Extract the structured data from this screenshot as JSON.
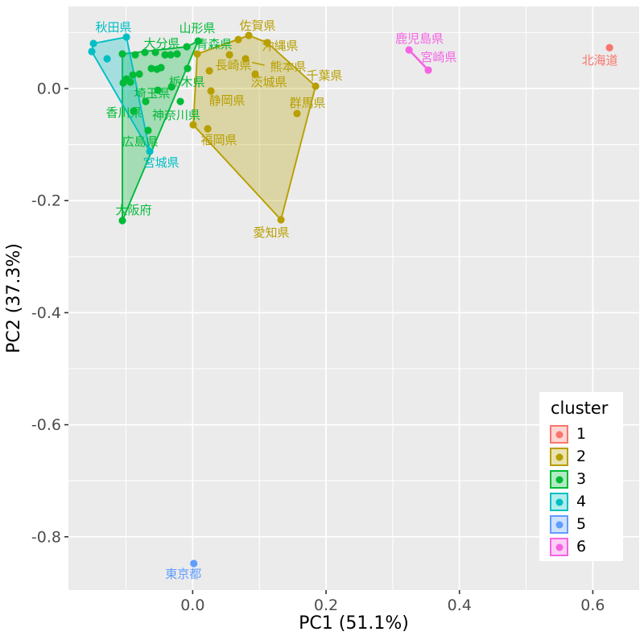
{
  "chart_data": {
    "type": "scatter",
    "title": "",
    "xlabel": "PC1 (51.1%)",
    "ylabel": "PC2 (37.3%)",
    "xlim": [
      -0.1863,
      0.6695
    ],
    "ylim": [
      -0.8951,
      0.1466
    ],
    "x_ticks": [
      0.0,
      0.2,
      0.4,
      0.6
    ],
    "x_tick_labels": [
      "0.0",
      "0.2",
      "0.4",
      "0.6"
    ],
    "y_ticks": [
      0.0,
      -0.2,
      -0.4,
      -0.6,
      -0.8
    ],
    "y_tick_labels": [
      "0.0",
      "-0.2",
      "-0.4",
      "-0.6",
      "-0.8"
    ],
    "grid": true,
    "panel_bg": "#EBEBEB",
    "grid_color": "#FFFFFF",
    "tick_color": "#333333",
    "tick_label_color": "#4D4D4D",
    "axis_title_color": "#000000",
    "legend": {
      "title": "cluster",
      "position": "right-inside",
      "entries": [
        {
          "label": "1",
          "color": "#F8766D"
        },
        {
          "label": "2",
          "color": "#B79F00"
        },
        {
          "label": "3",
          "color": "#00BA38"
        },
        {
          "label": "4",
          "color": "#00BFC4"
        },
        {
          "label": "5",
          "color": "#619CFF"
        },
        {
          "label": "6",
          "color": "#F564E3"
        }
      ]
    },
    "series": [
      {
        "name": "1",
        "color": "#F8766D",
        "hull_closed": false,
        "hull": [],
        "points": [
          {
            "x": 0.625,
            "y": 0.073,
            "label": "北海道",
            "dx": -12,
            "dy": 16
          }
        ]
      },
      {
        "name": "2",
        "color": "#B79F00",
        "hull_closed": true,
        "hull": [
          [
            0.0841,
            0.0948
          ],
          [
            0.1119,
            0.0819
          ],
          [
            0.1843,
            0.0043
          ],
          [
            0.1324,
            -0.2342
          ],
          [
            0.0008,
            -0.0647
          ],
          [
            0.0069,
            0.0618
          ]
        ],
        "points": [
          {
            "x": 0.0841,
            "y": 0.0948,
            "label": "佐賀県",
            "dx": 11,
            "dy": -12
          },
          {
            "x": 0.1119,
            "y": 0.0819,
            "label": "沖縄県",
            "dx": 16,
            "dy": 4
          },
          {
            "x": 0.0793,
            "y": 0.0532,
            "label": "熊本県",
            "dx": 53,
            "dy": 10
          },
          {
            "x": 0.0938,
            "y": 0.0259,
            "label": "茨城県",
            "dx": 17,
            "dy": 10
          },
          {
            "x": 0.025,
            "y": 0.0316,
            "label": "長崎県",
            "dx": 30,
            "dy": -7
          },
          {
            "x": 0.1843,
            "y": 0.0043,
            "label": "千葉県",
            "dx": 11,
            "dy": -13
          },
          {
            "x": 0.0274,
            "y": -0.0043,
            "label": "静岡県",
            "dx": 20,
            "dy": 12
          },
          {
            "x": 0.1565,
            "y": -0.0445,
            "label": "群馬県",
            "dx": 13,
            "dy": -13
          },
          {
            "x": 0.0226,
            "y": -0.0718,
            "label": "福岡県",
            "dx": 14,
            "dy": 14
          },
          {
            "x": 0.1324,
            "y": -0.2342,
            "label": "愛知県",
            "dx": -12,
            "dy": 16
          },
          {
            "x": 0.0684,
            "y": 0.0876
          },
          {
            "x": 0.0552,
            "y": 0.0603
          },
          {
            "x": 0.0069,
            "y": 0.0618
          },
          {
            "x": 0.0008,
            "y": -0.0647
          }
        ]
      },
      {
        "name": "3",
        "color": "#00BA38",
        "hull_closed": true,
        "hull": [
          [
            -0.1054,
            0.0618
          ],
          [
            -0.0088,
            0.0747
          ],
          [
            0.0081,
            0.0848
          ],
          [
            -0.1054,
            -0.2356
          ]
        ],
        "points": [
          {
            "x": -0.0088,
            "y": 0.0747,
            "label": "山形県",
            "dx": 13,
            "dy": -23
          },
          {
            "x": 0.0081,
            "y": 0.0848,
            "label": "青森県",
            "dx": 20,
            "dy": 4
          },
          {
            "x": -0.0559,
            "y": 0.0647,
            "label": "大分県",
            "dx": 8,
            "dy": -11
          },
          {
            "x": -0.0317,
            "y": 0.0029,
            "label": "栃木県",
            "dx": 19,
            "dy": -6
          },
          {
            "x": -0.0704,
            "y": -0.023,
            "label": "埼玉県",
            "dx": 8,
            "dy": -10
          },
          {
            "x": -0.0185,
            "y": -0.023,
            "label": "神奈川県",
            "dx": -5,
            "dy": 17
          },
          {
            "x": -0.0885,
            "y": -0.0402,
            "label": "香川県",
            "dx": -12,
            "dy": 2
          },
          {
            "x": -0.0668,
            "y": -0.0747,
            "label": "広島県",
            "dx": -10,
            "dy": 14
          },
          {
            "x": -0.1054,
            "y": -0.2356,
            "label": "大阪府",
            "dx": 14,
            "dy": -13
          },
          {
            "x": -0.1054,
            "y": 0.0618
          },
          {
            "x": -0.0861,
            "y": 0.0603
          },
          {
            "x": -0.0716,
            "y": 0.0647
          },
          {
            "x": -0.0414,
            "y": 0.0603
          },
          {
            "x": -0.033,
            "y": 0.0603
          },
          {
            "x": -0.0233,
            "y": 0.0618
          },
          {
            "x": -0.0619,
            "y": 0.0359
          },
          {
            "x": -0.0535,
            "y": 0.0345
          },
          {
            "x": -0.0474,
            "y": 0.0374
          },
          {
            "x": -0.0076,
            "y": 0.0359
          },
          {
            "x": -0.0897,
            "y": 0.0244
          },
          {
            "x": -0.08,
            "y": 0.0259
          },
          {
            "x": -0.0993,
            "y": 0.0172
          },
          {
            "x": -0.1042,
            "y": 0.0101
          },
          {
            "x": -0.0933,
            "y": 0.0115
          },
          {
            "x": -0.0523,
            "y": -0.0029
          }
        ]
      },
      {
        "name": "4",
        "color": "#00BFC4",
        "hull_closed": true,
        "hull": [
          [
            -0.1513,
            0.0661
          ],
          [
            -0.1488,
            0.0805
          ],
          [
            -0.0993,
            0.092
          ],
          [
            -0.0643,
            -0.1121
          ]
        ],
        "points": [
          {
            "x": -0.1488,
            "y": 0.0805,
            "label": "秋田県",
            "dx": 25,
            "dy": -20
          },
          {
            "x": -0.0643,
            "y": -0.1121,
            "label": "宮城県",
            "dx": 14,
            "dy": 14
          },
          {
            "x": -0.1513,
            "y": 0.0661
          },
          {
            "x": -0.1283,
            "y": 0.0532
          },
          {
            "x": -0.0993,
            "y": 0.092
          }
        ]
      },
      {
        "name": "5",
        "color": "#619CFF",
        "hull_closed": false,
        "hull": [],
        "points": [
          {
            "x": 0.0017,
            "y": -0.8477,
            "label": "東京都",
            "dx": -13,
            "dy": 13
          }
        ]
      },
      {
        "name": "6",
        "color": "#F564E3",
        "hull_closed": false,
        "hull": [
          [
            0.3244,
            0.069
          ],
          [
            0.3533,
            0.033
          ]
        ],
        "points": [
          {
            "x": 0.3244,
            "y": 0.069,
            "label": "鹿児島県",
            "dx": 13,
            "dy": -14
          },
          {
            "x": 0.3533,
            "y": 0.033,
            "label": "宮崎県",
            "dx": 13,
            "dy": -16
          }
        ]
      }
    ],
    "leader_segments": [
      {
        "x1": 0.089,
        "y1": 0.0467,
        "x2": 0.1077,
        "y2": 0.0417,
        "color": "#B79F00"
      }
    ]
  }
}
